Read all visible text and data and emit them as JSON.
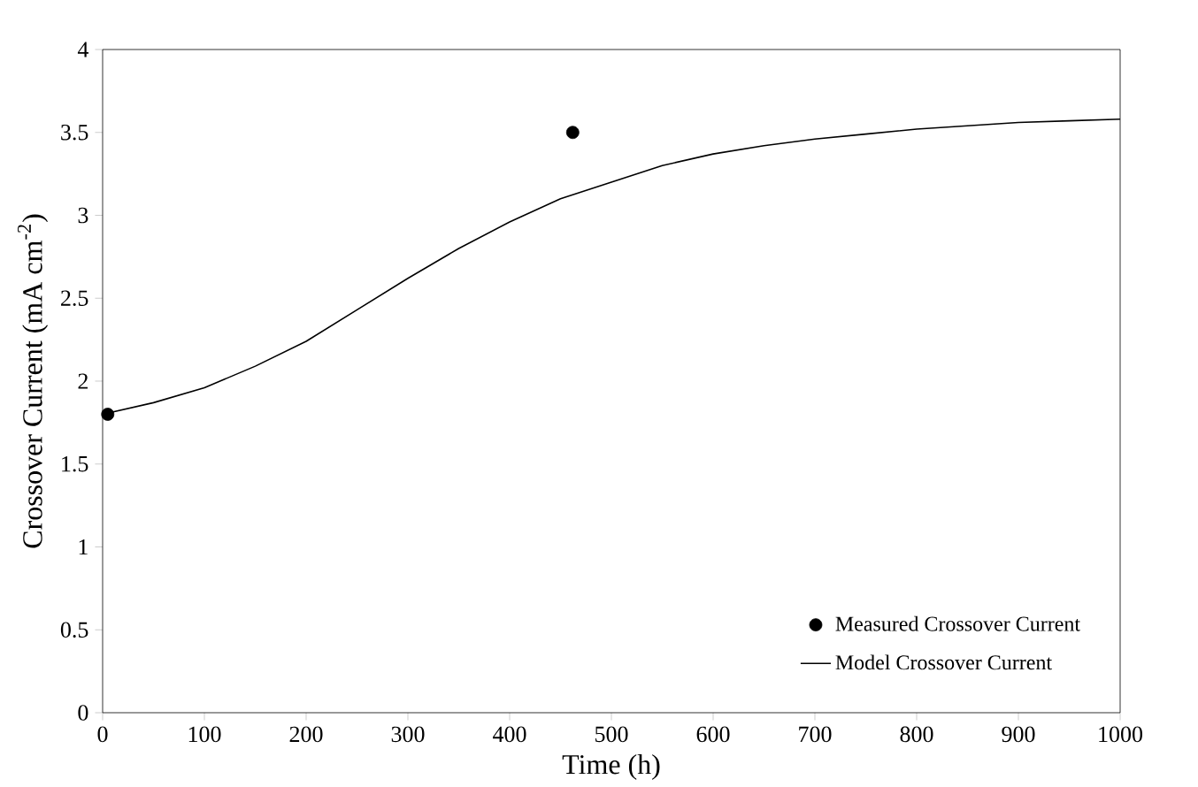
{
  "chart_data": {
    "type": "line",
    "xlabel": "Time (h)",
    "ylabel": "Crossover Current (mA cm$^{-2}$)",
    "xlim": [
      0,
      1000
    ],
    "ylim": [
      0,
      4
    ],
    "xticks": [
      0,
      100,
      200,
      300,
      400,
      500,
      600,
      700,
      800,
      900,
      1000
    ],
    "yticks": [
      0,
      0.5,
      1,
      1.5,
      2,
      2.5,
      3,
      3.5,
      4
    ],
    "grid": false,
    "legend": "bottom right",
    "series": [
      {
        "name": "Measured Crossover Current",
        "type": "scatter",
        "marker": "circle",
        "color": "#000000",
        "x": [
          5,
          462
        ],
        "values": [
          1.8,
          3.5
        ]
      },
      {
        "name": "Model Crossover Current",
        "marker": "none",
        "line_style": "solid",
        "color": "#000000",
        "x": [
          0,
          50,
          100,
          150,
          200,
          250,
          300,
          350,
          400,
          450,
          500,
          550,
          600,
          650,
          700,
          750,
          800,
          850,
          900,
          950,
          1000
        ],
        "values": [
          1.8,
          1.87,
          1.96,
          2.09,
          2.24,
          2.43,
          2.62,
          2.8,
          2.96,
          3.1,
          3.2,
          3.3,
          3.37,
          3.42,
          3.46,
          3.49,
          3.52,
          3.54,
          3.56,
          3.57,
          3.58
        ]
      }
    ]
  }
}
